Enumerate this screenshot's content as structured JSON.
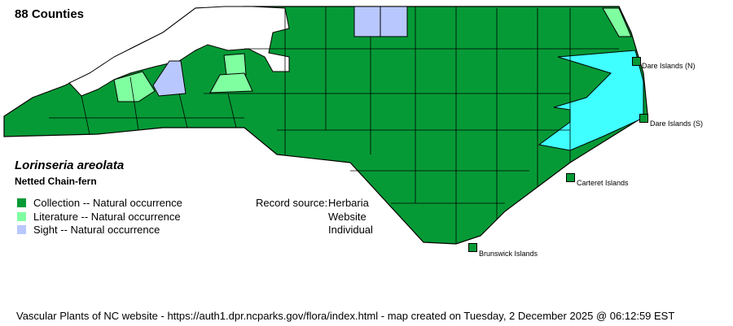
{
  "header": {
    "county_count": "88 Counties"
  },
  "species": {
    "scientific_name": "Lorinseria areolata",
    "common_name": "Netted Chain-fern"
  },
  "legend": [
    {
      "label": "Collection -- Natural occurrence",
      "color": "#069a36"
    },
    {
      "label": "Literature -- Natural occurrence",
      "color": "#80ffa0"
    },
    {
      "label": "Sight -- Natural occurrence",
      "color": "#b8c8ff"
    }
  ],
  "record_source": {
    "label": "Record source:",
    "values": [
      "Herbaria",
      "Website",
      "Individual"
    ]
  },
  "islands": [
    "Dare Islands (N)",
    "Dare Islands (S)",
    "Carteret Islands",
    "Brunswick Islands"
  ],
  "colors": {
    "water": "#40ffff",
    "no_record": "#ffffff",
    "border": "#000000"
  },
  "footer": "Vascular Plants of NC website - https://auth1.dpr.ncparks.gov/flora/index.html - map created on Tuesday, 2 December 2025 @ 06:12:59 EST"
}
